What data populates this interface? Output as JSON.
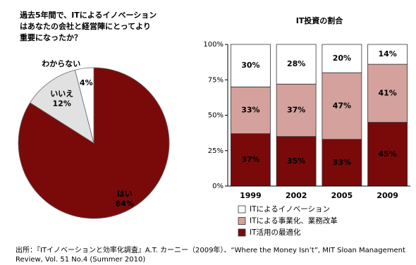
{
  "chart_data": [
    {
      "type": "pie",
      "title": [
        "過去5年間で、ITによるイノベーション",
        "はあなたの会社と経営陣にとってより",
        "重要になったか？"
      ],
      "labels": [
        "はい",
        "いいえ",
        "わからない"
      ],
      "values": [
        84,
        12,
        4
      ],
      "value_labels": [
        "84%",
        "12%",
        "4%"
      ],
      "colors": [
        "#7a0a0a",
        "#e1e1e1",
        "#ffffff"
      ]
    },
    {
      "type": "stacked-bar",
      "title": "IT投資の割合",
      "categories": [
        "1999",
        "2002",
        "2005",
        "2009"
      ],
      "series": [
        {
          "name": "IT活用の最適化",
          "color": "#7a0a0a",
          "values": [
            37,
            35,
            33,
            45
          ],
          "value_labels": [
            "37%",
            "35%",
            "33%",
            "45%"
          ]
        },
        {
          "name": "ITによる事業化、業務改革",
          "color": "#d4a19d",
          "values": [
            33,
            37,
            47,
            41
          ],
          "value_labels": [
            "33%",
            "37%",
            "47%",
            "41%"
          ]
        },
        {
          "name": "ITによるイノベーション",
          "color": "#ffffff",
          "values": [
            30,
            28,
            20,
            14
          ],
          "value_labels": [
            "30%",
            "28%",
            "20%",
            "14%"
          ]
        }
      ],
      "ylim": [
        0,
        100
      ],
      "yticks": [
        {
          "value": 0,
          "label": "0%"
        },
        {
          "value": 25,
          "label": "25%"
        },
        {
          "value": 50,
          "label": "50%"
        },
        {
          "value": 75,
          "label": "75%"
        },
        {
          "value": 100,
          "label": "100%"
        }
      ]
    }
  ],
  "source": [
    "出所：『ITイノベーションと効率化調査』A.T. カーニー（2009年）、“Where the Money Isn’t”, MIT Sloan Management",
    "Review, Vol. 51 No.4 (Summer 2010)"
  ]
}
